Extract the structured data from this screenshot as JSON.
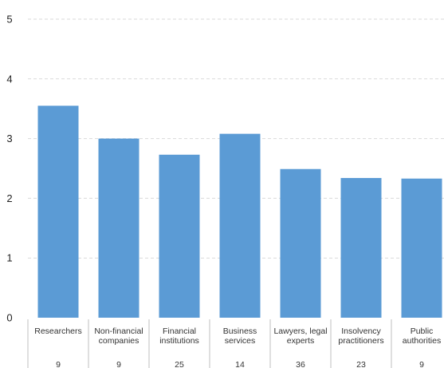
{
  "chart_data": {
    "type": "bar",
    "categories": [
      [
        "Researchers"
      ],
      [
        "Non-financial",
        "companies"
      ],
      [
        "Financial",
        "institutions"
      ],
      [
        "Business",
        "services"
      ],
      [
        "Lawyers, legal",
        "experts"
      ],
      [
        "Insolvency",
        "practitioners"
      ],
      [
        "Public",
        "authorities"
      ]
    ],
    "values": [
      3.55,
      3.0,
      2.73,
      3.08,
      2.49,
      2.34,
      2.33
    ],
    "counts": [
      "9",
      "9",
      "25",
      "14",
      "36",
      "23",
      "9"
    ],
    "ylim": [
      0,
      5
    ],
    "yticks": [
      "0",
      "1",
      "2",
      "3",
      "4",
      "5"
    ],
    "grid": true,
    "bar_color": "#5b9bd5",
    "title": "",
    "xlabel": "",
    "ylabel": ""
  }
}
